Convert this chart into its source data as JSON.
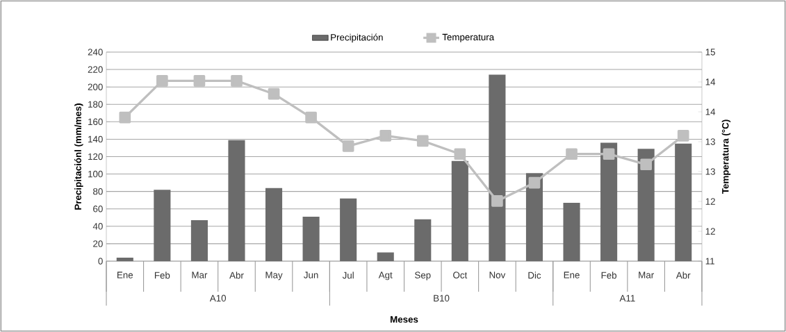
{
  "chart_data": {
    "type": "bar",
    "categories": [
      "Ene",
      "Feb",
      "Mar",
      "Abr",
      "May",
      "Jun",
      "Jul",
      "Agt",
      "Sep",
      "Oct",
      "Nov",
      "Dic",
      "Ene",
      "Feb",
      "Mar",
      "Abr"
    ],
    "series": [
      {
        "name": "Precipitación",
        "color": "#6b6b6b",
        "values": [
          4,
          82,
          47,
          139,
          84,
          51,
          72,
          10,
          48,
          115,
          214,
          101,
          67,
          136,
          129,
          135
        ]
      },
      {
        "name": "Temperatura",
        "type": "line",
        "axis": "y2",
        "color": "#bfbfbf",
        "values": [
          13.75,
          14.45,
          14.45,
          14.45,
          14.2,
          13.75,
          13.2,
          13.4,
          13.3,
          13.05,
          12.15,
          12.5,
          13.05,
          13.05,
          12.85,
          13.4
        ]
      }
    ],
    "xlabel": "Meses",
    "ylabel": "Precipitaciónl (mm/mes)",
    "y2label": "Temperatura (°C)",
    "ylim": [
      0,
      240
    ],
    "yticks": [
      0,
      20,
      40,
      60,
      80,
      100,
      120,
      140,
      160,
      180,
      200,
      220,
      240
    ],
    "y2lim": [
      11,
      15
    ],
    "y2ticks": [
      {
        "value": 11,
        "label": "11"
      },
      {
        "value": 11.571,
        "label": "12"
      },
      {
        "value": 12.143,
        "label": "12"
      },
      {
        "value": 12.714,
        "label": "13"
      },
      {
        "value": 13.286,
        "label": "13"
      },
      {
        "value": 13.857,
        "label": "14"
      },
      {
        "value": 14.429,
        "label": "14"
      },
      {
        "value": 15,
        "label": "15"
      }
    ],
    "grid": "y",
    "legend": "top",
    "marker": "square",
    "annotations": [
      "A10",
      "B10",
      "A11"
    ]
  }
}
